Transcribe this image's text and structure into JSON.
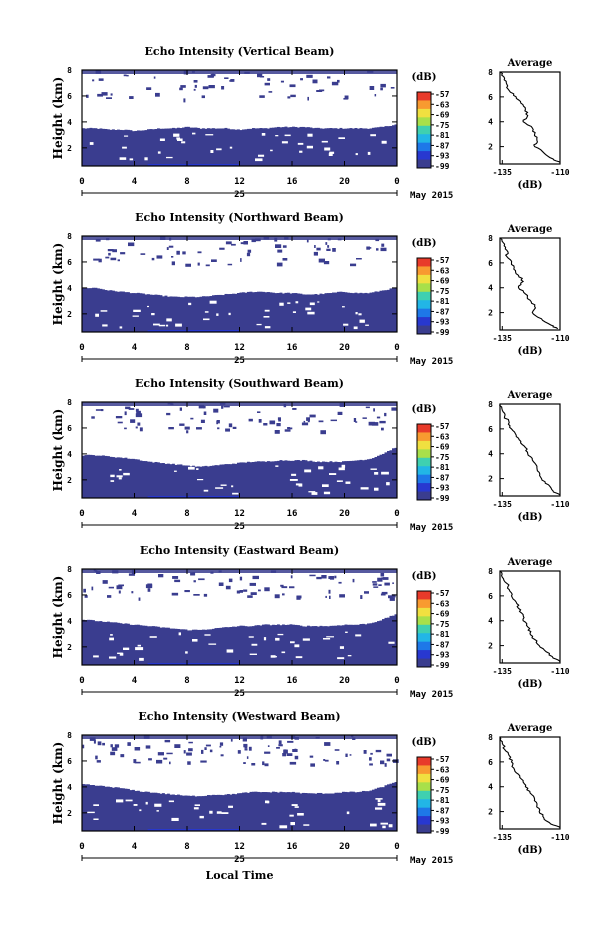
{
  "figure": {
    "xaxis_title": "Local Time",
    "date_label": "May 2015",
    "day_label": "25",
    "colorbar_unit": "(dB)",
    "avg_title": "Average",
    "avg_xlabel": "(dB)"
  },
  "palette": [
    "#3a3d8f",
    "#2838d0",
    "#1e78e8",
    "#22b6e6",
    "#3fd0b0",
    "#a8e04a",
    "#f0e040",
    "#f89a30",
    "#e83a2a"
  ],
  "chart_data": [
    {
      "type": "heatmap",
      "title": "Echo Intensity (Vertical Beam)",
      "ylabel": "Height (km)",
      "x_ticks": [
        "0",
        "4",
        "8",
        "12",
        "16",
        "20",
        "0"
      ],
      "x_range_hours": [
        0,
        24
      ],
      "y_ticks": [
        "2",
        "4",
        "6",
        "8"
      ],
      "y_range_km": [
        0.6,
        8
      ],
      "colorbar_ticks": [
        "-57",
        "-63",
        "-69",
        "-75",
        "-81",
        "-87",
        "-93",
        "-99"
      ],
      "colorbar_range_db": [
        -99,
        -57
      ],
      "cloud_top_km": [
        3.5,
        3.5,
        3.4,
        3.4,
        3.3,
        3.4,
        3.5,
        3.5,
        3.6,
        3.5,
        3.5,
        3.5,
        3.4,
        3.5,
        3.5,
        3.6,
        3.6,
        3.6,
        3.5,
        3.5,
        3.5,
        3.5,
        3.5,
        3.6,
        3.8
      ],
      "profile": {
        "xlim": [
          -136,
          -110
        ],
        "x_ticks": [
          "-135",
          "-110"
        ],
        "ylim": [
          0.6,
          8
        ],
        "y_ticks": [
          "2",
          "4",
          "6",
          "8"
        ],
        "height_km": [
          8.0,
          7.5,
          7.0,
          6.5,
          6.0,
          5.5,
          5.0,
          4.5,
          4.0,
          3.5,
          3.0,
          2.5,
          2.0,
          1.5,
          1.0,
          0.7
        ],
        "db": [
          -136,
          -134,
          -133,
          -132,
          -129,
          -127,
          -125,
          -124,
          -126,
          -122,
          -121,
          -120,
          -121,
          -117,
          -113,
          -110
        ]
      }
    },
    {
      "type": "heatmap",
      "title": "Echo Intensity (Northward Beam)",
      "ylabel": "Height (km)",
      "x_ticks": [
        "0",
        "4",
        "8",
        "12",
        "16",
        "20",
        "0"
      ],
      "x_range_hours": [
        0,
        24
      ],
      "y_ticks": [
        "2",
        "4",
        "6",
        "8"
      ],
      "y_range_km": [
        0.6,
        8
      ],
      "colorbar_ticks": [
        "-57",
        "-63",
        "-69",
        "-75",
        "-81",
        "-87",
        "-93",
        "-99"
      ],
      "colorbar_range_db": [
        -99,
        -57
      ],
      "cloud_top_km": [
        4.0,
        4.0,
        3.8,
        3.7,
        3.6,
        3.5,
        3.4,
        3.3,
        3.3,
        3.3,
        3.4,
        3.5,
        3.6,
        3.7,
        3.7,
        3.6,
        3.6,
        3.5,
        3.5,
        3.6,
        3.7,
        3.6,
        3.6,
        3.8,
        4.0
      ],
      "profile": {
        "xlim": [
          -136,
          -110
        ],
        "x_ticks": [
          "-135",
          "-110"
        ],
        "ylim": [
          0.6,
          8
        ],
        "y_ticks": [
          "2",
          "4",
          "6",
          "8"
        ],
        "height_km": [
          8.0,
          7.5,
          7.0,
          6.5,
          6.0,
          5.5,
          5.0,
          4.5,
          4.0,
          3.5,
          3.0,
          2.5,
          2.0,
          1.5,
          1.0,
          0.7
        ],
        "db": [
          -136,
          -134,
          -133,
          -133,
          -131,
          -130,
          -128,
          -126,
          -128,
          -125,
          -123,
          -121,
          -122,
          -118,
          -114,
          -111
        ]
      }
    },
    {
      "type": "heatmap",
      "title": "Echo Intensity (Southward Beam)",
      "ylabel": "Height (km)",
      "x_ticks": [
        "0",
        "4",
        "8",
        "12",
        "16",
        "20",
        "0"
      ],
      "x_range_hours": [
        0,
        24
      ],
      "y_ticks": [
        "2",
        "4",
        "6",
        "8"
      ],
      "y_range_km": [
        0.6,
        8
      ],
      "colorbar_ticks": [
        "-57",
        "-63",
        "-69",
        "-75",
        "-81",
        "-87",
        "-93",
        "-99"
      ],
      "colorbar_range_db": [
        -99,
        -57
      ],
      "cloud_top_km": [
        3.9,
        3.9,
        3.8,
        3.7,
        3.6,
        3.4,
        3.3,
        3.2,
        3.1,
        3.0,
        3.1,
        3.2,
        3.3,
        3.4,
        3.4,
        3.5,
        3.5,
        3.5,
        3.4,
        3.4,
        3.4,
        3.5,
        3.6,
        4.0,
        4.5
      ],
      "profile": {
        "xlim": [
          -136,
          -110
        ],
        "x_ticks": [
          "-135",
          "-110"
        ],
        "ylim": [
          0.6,
          8
        ],
        "y_ticks": [
          "2",
          "4",
          "6",
          "8"
        ],
        "height_km": [
          8.0,
          7.5,
          7.0,
          6.5,
          6.0,
          5.5,
          5.0,
          4.5,
          4.0,
          3.5,
          3.0,
          2.5,
          2.0,
          1.5,
          1.0,
          0.7
        ],
        "db": [
          -136,
          -135,
          -134,
          -132,
          -131,
          -129,
          -127,
          -125,
          -124,
          -122,
          -120,
          -119,
          -118,
          -115,
          -113,
          -110
        ]
      }
    },
    {
      "type": "heatmap",
      "title": "Echo Intensity (Eastward Beam)",
      "ylabel": "Height (km)",
      "x_ticks": [
        "0",
        "4",
        "8",
        "12",
        "16",
        "20",
        "0"
      ],
      "x_range_hours": [
        0,
        24
      ],
      "y_ticks": [
        "2",
        "4",
        "6",
        "8"
      ],
      "y_range_km": [
        0.6,
        8
      ],
      "colorbar_ticks": [
        "-57",
        "-63",
        "-69",
        "-75",
        "-81",
        "-87",
        "-93",
        "-99"
      ],
      "colorbar_range_db": [
        -99,
        -57
      ],
      "cloud_top_km": [
        4.1,
        4.0,
        3.9,
        3.8,
        3.7,
        3.6,
        3.5,
        3.4,
        3.3,
        3.3,
        3.4,
        3.5,
        3.6,
        3.6,
        3.7,
        3.7,
        3.7,
        3.6,
        3.6,
        3.6,
        3.7,
        3.7,
        3.8,
        4.1,
        4.5
      ],
      "profile": {
        "xlim": [
          -136,
          -110
        ],
        "x_ticks": [
          "-135",
          "-110"
        ],
        "ylim": [
          0.6,
          8
        ],
        "y_ticks": [
          "2",
          "4",
          "6",
          "8"
        ],
        "height_km": [
          8.0,
          7.5,
          7.0,
          6.5,
          6.0,
          5.5,
          5.0,
          4.5,
          4.0,
          3.5,
          3.0,
          2.5,
          2.0,
          1.5,
          1.0,
          0.7
        ],
        "db": [
          -136,
          -135,
          -133,
          -132,
          -131,
          -129,
          -128,
          -126,
          -126,
          -124,
          -123,
          -121,
          -119,
          -116,
          -113,
          -110
        ]
      }
    },
    {
      "type": "heatmap",
      "title": "Echo Intensity (Westward Beam)",
      "ylabel": "Height (km)",
      "x_ticks": [
        "0",
        "4",
        "8",
        "12",
        "16",
        "20",
        "0"
      ],
      "x_range_hours": [
        0,
        24
      ],
      "y_ticks": [
        "2",
        "4",
        "6",
        "8"
      ],
      "y_range_km": [
        0.6,
        8
      ],
      "colorbar_ticks": [
        "-57",
        "-63",
        "-69",
        "-75",
        "-81",
        "-87",
        "-93",
        "-99"
      ],
      "colorbar_range_db": [
        -99,
        -57
      ],
      "cloud_top_km": [
        4.2,
        4.1,
        4.0,
        3.9,
        3.7,
        3.6,
        3.5,
        3.4,
        3.3,
        3.3,
        3.4,
        3.4,
        3.5,
        3.6,
        3.6,
        3.6,
        3.6,
        3.5,
        3.5,
        3.5,
        3.6,
        3.6,
        3.7,
        4.0,
        4.4
      ],
      "profile": {
        "xlim": [
          -136,
          -110
        ],
        "x_ticks": [
          "-135",
          "-110"
        ],
        "ylim": [
          0.6,
          8
        ],
        "y_ticks": [
          "2",
          "4",
          "6",
          "8"
        ],
        "height_km": [
          8.0,
          7.5,
          7.0,
          6.5,
          6.0,
          5.5,
          5.0,
          4.5,
          4.0,
          3.5,
          3.0,
          2.5,
          2.0,
          1.5,
          1.0,
          0.7
        ],
        "db": [
          -136,
          -135,
          -134,
          -132,
          -131,
          -130,
          -128,
          -126,
          -125,
          -123,
          -121,
          -120,
          -119,
          -117,
          -114,
          -110
        ]
      }
    }
  ]
}
